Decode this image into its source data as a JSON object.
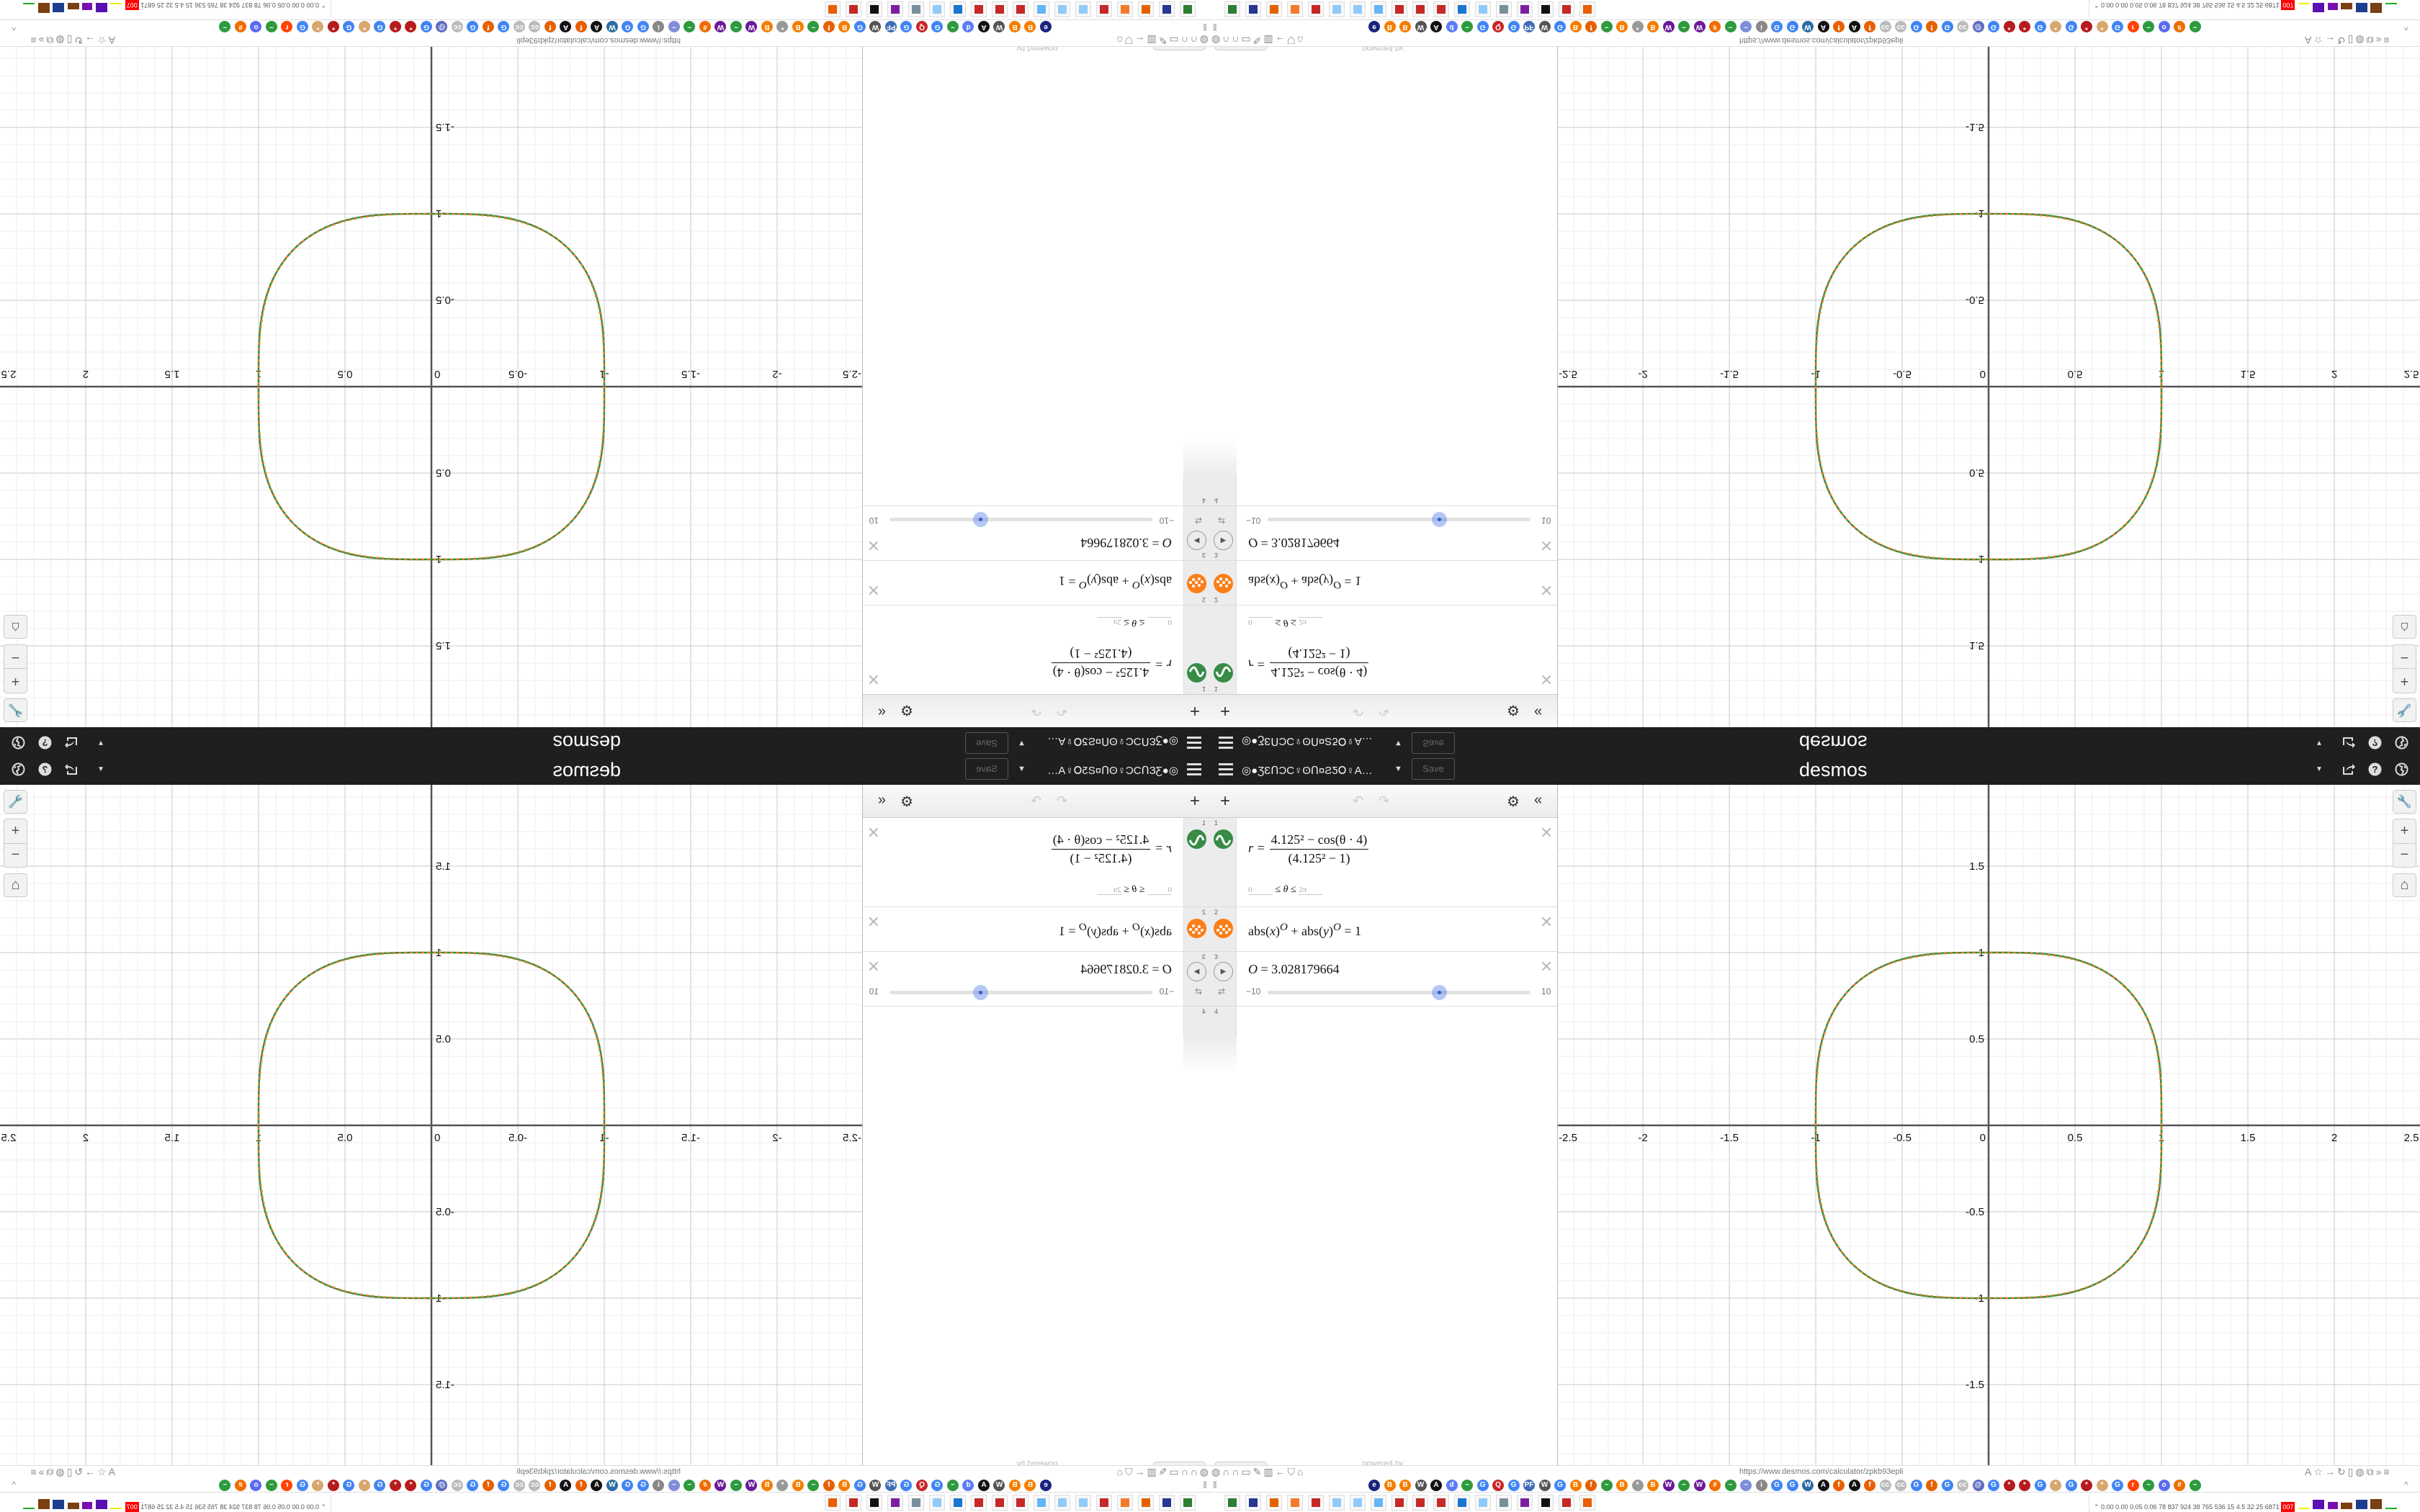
{
  "browser": {
    "url": "https://www.desmos.com/calculator/zpkb93epli",
    "left_icons": [
      "globe-icon",
      "headphones-icon",
      "headphones-icon",
      "folder-icon",
      "pen-icon",
      "trash-icon",
      "back-arrow-icon",
      "shield-icon",
      "lock-icon"
    ],
    "right_icons": [
      "translate-icon",
      "star-icon",
      "forward-icon",
      "reload-icon",
      "reader-icon",
      "globe-icon",
      "extension-icon",
      "overflow-icon",
      "menu-icon"
    ],
    "bookmarks": [
      {
        "t": "e",
        "c": "#1a237e"
      },
      {
        "t": "B",
        "c": "#f57d00"
      },
      {
        "t": "B",
        "c": "#f57d00"
      },
      {
        "t": "W",
        "c": "#555"
      },
      {
        "t": "A",
        "c": "#111"
      },
      {
        "t": "d",
        "c": "#5c7cfa"
      },
      {
        "t": "~",
        "c": "#2e9a3e"
      },
      {
        "t": "G",
        "c": "#4285f4"
      },
      {
        "t": "Q",
        "c": "#c62828"
      },
      {
        "t": "G",
        "c": "#4285f4"
      },
      {
        "t": "PF",
        "c": "#3f6cb5"
      },
      {
        "t": "W",
        "c": "#555"
      },
      {
        "t": "G",
        "c": "#4285f4"
      },
      {
        "t": "B",
        "c": "#f57d00"
      },
      {
        "t": "f",
        "c": "#e66000"
      },
      {
        "t": "~",
        "c": "#2e9a3e"
      },
      {
        "t": "B",
        "c": "#f57d00"
      },
      {
        "t": "*",
        "c": "#999"
      },
      {
        "t": "B",
        "c": "#f57d00"
      },
      {
        "t": "W",
        "c": "#6a1b9a"
      },
      {
        "t": "~",
        "c": "#2e9a3e"
      },
      {
        "t": "W",
        "c": "#6a1b9a"
      },
      {
        "t": "#",
        "c": "#ef6c00"
      },
      {
        "t": "~",
        "c": "#2e9a3e"
      },
      {
        "t": "~",
        "c": "#7e8fd8"
      },
      {
        "t": "i",
        "c": "#888"
      },
      {
        "t": "G",
        "c": "#4285f4"
      },
      {
        "t": "G",
        "c": "#4285f4"
      },
      {
        "t": "W",
        "c": "#2b6ca3"
      },
      {
        "t": "A",
        "c": "#111"
      },
      {
        "t": "f",
        "c": "#e66000"
      },
      {
        "t": "A",
        "c": "#111"
      },
      {
        "t": "f",
        "c": "#e66000"
      },
      {
        "t": "cc",
        "c": "#bbb"
      },
      {
        "t": "cc",
        "c": "#bbb"
      },
      {
        "t": "G",
        "c": "#4285f4"
      },
      {
        "t": "f",
        "c": "#e66000"
      },
      {
        "t": "G",
        "c": "#4285f4"
      },
      {
        "t": "cc",
        "c": "#bbb"
      },
      {
        "t": "@",
        "c": "#5c6bc0"
      },
      {
        "t": "G",
        "c": "#4285f4"
      },
      {
        "t": "*",
        "c": "#b71c1c"
      },
      {
        "t": "*",
        "c": "#b71c1c"
      },
      {
        "t": "G",
        "c": "#4285f4"
      },
      {
        "t": "*",
        "c": "#d7a86e"
      },
      {
        "t": "G",
        "c": "#4285f4"
      },
      {
        "t": "*",
        "c": "#b71c1c"
      },
      {
        "t": "*",
        "c": "#d7a86e"
      },
      {
        "t": "G",
        "c": "#4285f4"
      },
      {
        "t": "r",
        "c": "#ff4500"
      },
      {
        "t": "~",
        "c": "#2e9a3e"
      },
      {
        "t": "o",
        "c": "#5c6bf0"
      },
      {
        "t": "#",
        "c": "#ef6c00"
      },
      {
        "t": "~",
        "c": "#2e9a3e"
      }
    ],
    "taskbar": [
      {
        "name": "terminal-icon",
        "c": "#2e7d32"
      },
      {
        "name": "floppy-icon",
        "c": "#283593"
      },
      {
        "name": "firefox-icon",
        "c": "#e66000"
      },
      {
        "name": "blender-icon",
        "c": "#f5792a"
      },
      {
        "name": "app-icon",
        "c": "#c62828"
      },
      {
        "name": "notepad-icon",
        "c": "#90caf9"
      },
      {
        "name": "notepad-icon",
        "c": "#90caf9"
      },
      {
        "name": "calculator-icon",
        "c": "#64b5f6"
      },
      {
        "name": "app-icon",
        "c": "#c62828"
      },
      {
        "name": "app-icon",
        "c": "#c62828"
      },
      {
        "name": "app-icon",
        "c": "#c62828"
      },
      {
        "name": "control-panel-icon",
        "c": "#1976d2"
      },
      {
        "name": "notepad-icon",
        "c": "#90caf9"
      },
      {
        "name": "document-icon",
        "c": "#78909c"
      },
      {
        "name": "chat-icon",
        "c": "#7b1fa2"
      },
      {
        "name": "inkscape-icon",
        "c": "#111"
      },
      {
        "name": "app-icon",
        "c": "#c62828"
      },
      {
        "name": "firefox-icon",
        "c": "#e66000"
      }
    ],
    "tray_text": "0.00 0.00 0.05 0.06  78  837  924  38  765  536  15  4.5  32  25  6871",
    "tray_badge": "007"
  },
  "header": {
    "title": "◎●ƷƐՈƆC♀ʘՈ¤ƧƼՕ♀A…",
    "save": "Save",
    "logo": "desmos"
  },
  "panel": {
    "expressions": [
      {
        "num": "1",
        "lhs": "r =",
        "numerator": "4.125² − cos(θ · 4)",
        "denominator": "(4.125² − 1)",
        "domain_min": "0",
        "domain_var": "≤ θ ≤",
        "domain_max": "2π",
        "color": "#388c46"
      },
      {
        "num": "2",
        "a": "abs(",
        "x": "x",
        "b": ")",
        "exp": "O",
        "c": " + abs(",
        "y": "y",
        "d": ")",
        "exp2": "O",
        "e": " = 1",
        "color": "#fa7e19"
      },
      {
        "num": "3",
        "var": "O",
        "value": "= 3.028179664",
        "slider_min": "−10",
        "slider_max": "10",
        "slider_value": 3.028179664
      },
      {
        "num": "4"
      }
    ],
    "powered_by": "powered by",
    "powered_logo": "desmos"
  },
  "graph": {
    "x_range": [
      -2.5,
      2.5
    ],
    "y_range": [
      -1.97,
      1.97
    ],
    "x_ticks": [
      "-2.5",
      "-2",
      "-1.5",
      "-1",
      "-0.5",
      "0",
      "0.5",
      "1",
      "1.5",
      "2",
      "2.5"
    ],
    "y_ticks": [
      "1.5",
      "1",
      "0.5",
      "-0.5",
      "-1",
      "-1.5"
    ],
    "curve_color": "#388c46",
    "curve2_color": "#fa7e19",
    "exponent": 3.028179664,
    "polar_a": 4.125
  }
}
